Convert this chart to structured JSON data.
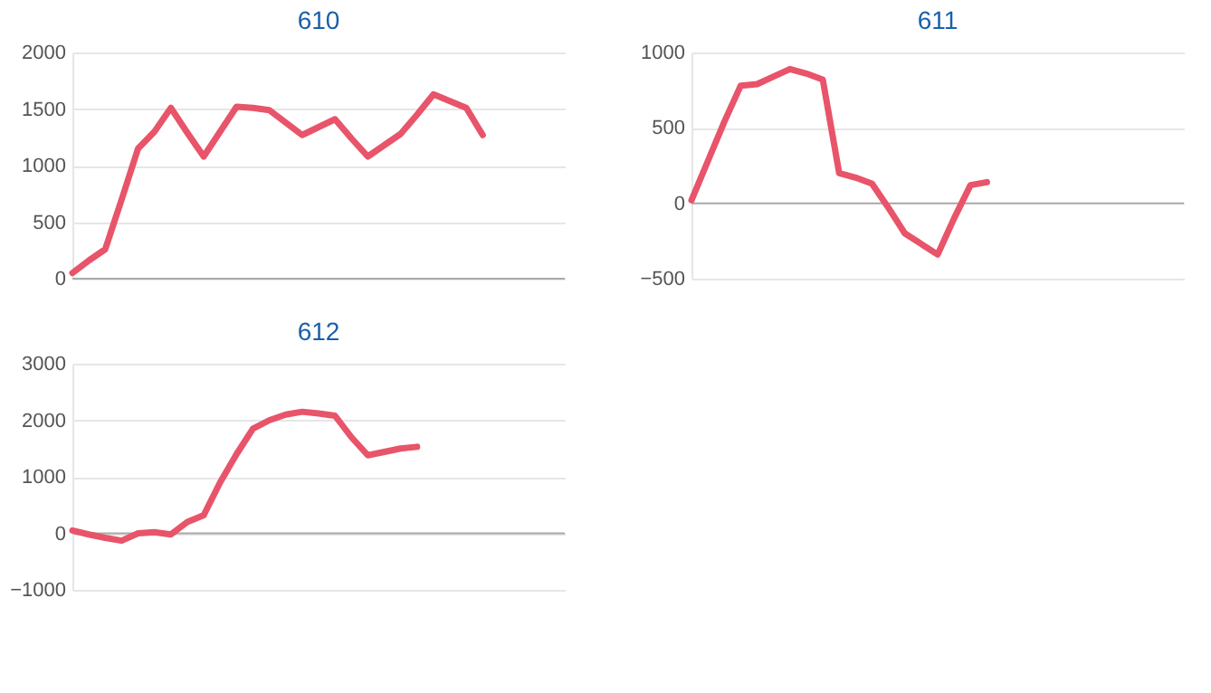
{
  "chart_data": [
    {
      "type": "line",
      "title": "610",
      "categories": [
        null,
        null,
        null,
        null,
        null,
        null,
        null,
        null,
        null,
        null,
        null,
        null,
        null,
        null,
        null,
        null,
        null,
        null,
        null,
        null,
        null,
        null,
        null,
        null,
        null,
        null,
        null,
        null,
        null,
        null,
        null
      ],
      "series": [
        {
          "color": "#e8546a",
          "values": [
            50,
            160,
            260,
            700,
            1150,
            1300,
            1510,
            1290,
            1080,
            1300,
            1520,
            1510,
            1490,
            1380,
            1270,
            1340,
            1410,
            1240,
            1080,
            1180,
            1280,
            1450,
            1630,
            1570,
            1510,
            1270,
            null,
            null,
            null,
            null,
            null
          ]
        }
      ],
      "ylim": [
        0,
        2000
      ],
      "yticks": [
        0,
        500,
        1000,
        1500,
        2000
      ],
      "grid": "y",
      "tick_labels": "y",
      "marker": "none",
      "line_style": "solid",
      "ref_lines": [
        {
          "axis": "y",
          "value": 0,
          "color": "#aaaaaa"
        }
      ]
    },
    {
      "type": "line",
      "title": "611",
      "categories": [
        null,
        null,
        null,
        null,
        null,
        null,
        null,
        null,
        null,
        null,
        null,
        null,
        null,
        null,
        null,
        null,
        null,
        null,
        null,
        null,
        null,
        null,
        null,
        null,
        null,
        null,
        null,
        null,
        null,
        null,
        null
      ],
      "series": [
        {
          "color": "#e8546a",
          "values": [
            20,
            280,
            540,
            780,
            790,
            840,
            890,
            860,
            820,
            200,
            170,
            130,
            -30,
            -200,
            -270,
            -340,
            -100,
            120,
            140,
            null,
            null,
            null,
            null,
            null,
            null,
            null,
            null,
            null,
            null,
            null,
            null
          ]
        }
      ],
      "ylim": [
        -500,
        1000
      ],
      "yticks": [
        -500,
        0,
        500,
        1000
      ],
      "grid": "y",
      "tick_labels": "y",
      "marker": "none",
      "line_style": "solid",
      "ref_lines": [
        {
          "axis": "y",
          "value": 0,
          "color": "#aaaaaa"
        }
      ]
    },
    {
      "type": "line",
      "title": "612",
      "categories": [
        null,
        null,
        null,
        null,
        null,
        null,
        null,
        null,
        null,
        null,
        null,
        null,
        null,
        null,
        null,
        null,
        null,
        null,
        null,
        null,
        null,
        null,
        null,
        null,
        null,
        null,
        null,
        null,
        null,
        null,
        null
      ],
      "series": [
        {
          "color": "#e8546a",
          "values": [
            50,
            -20,
            -80,
            -130,
            0,
            20,
            -20,
            200,
            320,
            900,
            1400,
            1850,
            2000,
            2100,
            2150,
            2120,
            2080,
            1700,
            1380,
            1440,
            1500,
            1530,
            null,
            null,
            null,
            null,
            null,
            null,
            null,
            null,
            null
          ]
        }
      ],
      "ylim": [
        -1000,
        3000
      ],
      "yticks": [
        -1000,
        0,
        1000,
        2000,
        3000
      ],
      "grid": "y",
      "tick_labels": "y",
      "marker": "none",
      "line_style": "solid",
      "ref_lines": [
        {
          "axis": "y",
          "value": 0,
          "color": "#aaaaaa"
        }
      ]
    }
  ]
}
